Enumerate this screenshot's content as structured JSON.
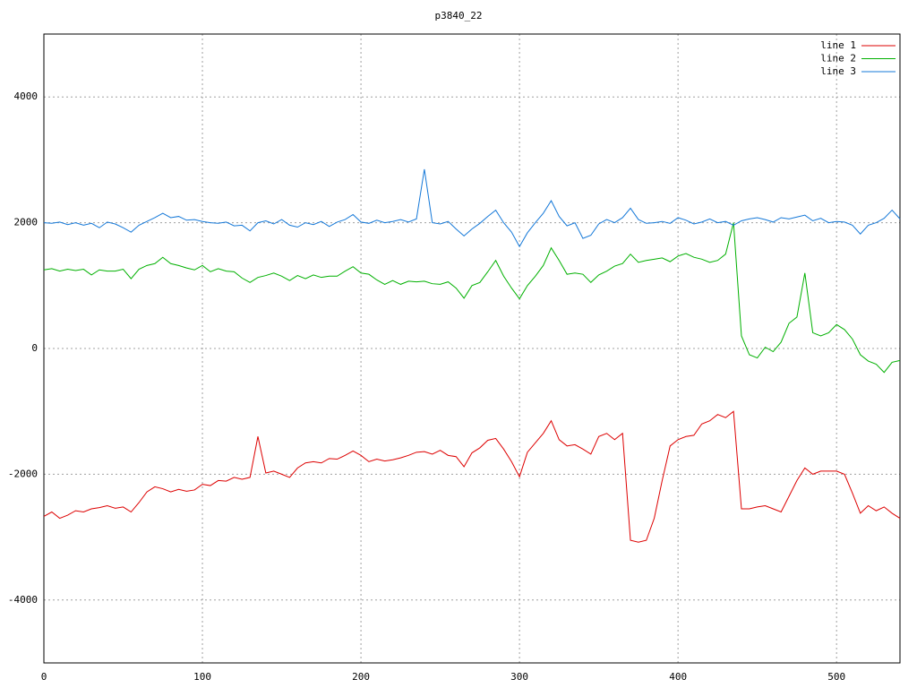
{
  "chart_data": {
    "type": "line",
    "title": "p3840_22",
    "x": [
      0,
      5,
      10,
      15,
      20,
      25,
      30,
      35,
      40,
      45,
      50,
      55,
      60,
      65,
      70,
      75,
      80,
      85,
      90,
      95,
      100,
      105,
      110,
      115,
      120,
      125,
      130,
      135,
      140,
      145,
      150,
      155,
      160,
      165,
      170,
      175,
      180,
      185,
      190,
      195,
      200,
      205,
      210,
      215,
      220,
      225,
      230,
      235,
      240,
      245,
      250,
      255,
      260,
      265,
      270,
      275,
      280,
      285,
      290,
      295,
      300,
      305,
      310,
      315,
      320,
      325,
      330,
      335,
      340,
      345,
      350,
      355,
      360,
      365,
      370,
      375,
      380,
      385,
      390,
      395,
      400,
      405,
      410,
      415,
      420,
      425,
      430,
      435,
      440,
      445,
      450,
      455,
      460,
      465,
      470,
      475,
      480,
      485,
      490,
      495,
      500,
      505,
      510,
      515,
      520,
      525,
      530,
      535,
      540
    ],
    "series": [
      {
        "name": "line 1",
        "color": "#dd0000",
        "values": [
          -2670,
          -2600,
          -2700,
          -2650,
          -2580,
          -2600,
          -2550,
          -2530,
          -2500,
          -2540,
          -2520,
          -2600,
          -2450,
          -2280,
          -2200,
          -2230,
          -2280,
          -2240,
          -2270,
          -2250,
          -2160,
          -2180,
          -2100,
          -2110,
          -2050,
          -2080,
          -2050,
          -1400,
          -1980,
          -1950,
          -2000,
          -2050,
          -1900,
          -1820,
          -1800,
          -1820,
          -1750,
          -1760,
          -1700,
          -1630,
          -1700,
          -1800,
          -1760,
          -1790,
          -1770,
          -1740,
          -1700,
          -1650,
          -1640,
          -1680,
          -1620,
          -1700,
          -1720,
          -1880,
          -1660,
          -1580,
          -1460,
          -1430,
          -1600,
          -1800,
          -2040,
          -1650,
          -1500,
          -1350,
          -1150,
          -1450,
          -1550,
          -1530,
          -1600,
          -1680,
          -1400,
          -1350,
          -1450,
          -1350,
          -3050,
          -3080,
          -3050,
          -2700,
          -2100,
          -1550,
          -1450,
          -1400,
          -1380,
          -1200,
          -1150,
          -1050,
          -1100,
          -1000,
          -2550,
          -2550,
          -2520,
          -2500,
          -2550,
          -2600,
          -2350,
          -2100,
          -1900,
          -2000,
          -1950,
          -1950,
          -1950,
          -2000,
          -2300,
          -2620,
          -2500,
          -2580,
          -2520,
          -2620,
          -2700
        ]
      },
      {
        "name": "line 2",
        "color": "#00b000",
        "values": [
          1250,
          1270,
          1230,
          1260,
          1240,
          1260,
          1170,
          1250,
          1230,
          1230,
          1260,
          1110,
          1260,
          1320,
          1350,
          1450,
          1350,
          1320,
          1280,
          1250,
          1320,
          1220,
          1270,
          1230,
          1220,
          1120,
          1050,
          1130,
          1160,
          1200,
          1150,
          1080,
          1160,
          1110,
          1170,
          1130,
          1150,
          1150,
          1230,
          1300,
          1200,
          1180,
          1090,
          1020,
          1080,
          1020,
          1070,
          1060,
          1070,
          1030,
          1020,
          1060,
          960,
          800,
          1000,
          1050,
          1220,
          1400,
          1150,
          960,
          790,
          1000,
          1150,
          1320,
          1600,
          1400,
          1180,
          1200,
          1180,
          1050,
          1170,
          1230,
          1310,
          1350,
          1500,
          1370,
          1400,
          1420,
          1440,
          1380,
          1470,
          1510,
          1450,
          1420,
          1370,
          1400,
          1500,
          2000,
          200,
          -100,
          -150,
          20,
          -50,
          100,
          400,
          500,
          1200,
          250,
          200,
          250,
          380,
          300,
          150,
          -100,
          -200,
          -250,
          -380,
          -220,
          -190
        ]
      },
      {
        "name": "line 3",
        "color": "#1478d8",
        "values": [
          2000,
          1990,
          2010,
          1970,
          2000,
          1960,
          1990,
          1920,
          2010,
          1980,
          1920,
          1850,
          1960,
          2020,
          2080,
          2150,
          2080,
          2100,
          2040,
          2050,
          2020,
          2000,
          1990,
          2010,
          1950,
          1960,
          1870,
          2000,
          2030,
          1980,
          2050,
          1960,
          1930,
          2000,
          1970,
          2020,
          1940,
          2010,
          2050,
          2130,
          2010,
          1990,
          2040,
          2000,
          2020,
          2050,
          2010,
          2060,
          2850,
          2000,
          1980,
          2020,
          1900,
          1790,
          1900,
          1990,
          2100,
          2200,
          2000,
          1850,
          1620,
          1840,
          2000,
          2150,
          2350,
          2100,
          1950,
          2000,
          1750,
          1800,
          1980,
          2050,
          2000,
          2080,
          2230,
          2050,
          1990,
          2000,
          2020,
          1990,
          2080,
          2040,
          1980,
          2010,
          2060,
          2000,
          2020,
          1960,
          2030,
          2060,
          2080,
          2050,
          2010,
          2080,
          2060,
          2090,
          2120,
          2030,
          2070,
          2000,
          2020,
          2010,
          1960,
          1820,
          1960,
          2000,
          2070,
          2200,
          2060
        ]
      }
    ],
    "xlim": [
      0,
      540
    ],
    "xticks": [
      0,
      100,
      200,
      300,
      400,
      500
    ],
    "ylim": [
      -5000,
      5000
    ],
    "yticks": [
      -4000,
      -2000,
      0,
      2000,
      4000
    ],
    "grid": true,
    "legend": "top-right"
  }
}
